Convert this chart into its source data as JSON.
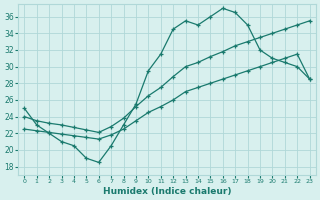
{
  "xlabel": "Humidex (Indice chaleur)",
  "ylabel": "",
  "background_color": "#d8f0ee",
  "grid_color": "#b0d8d8",
  "line_color": "#1a7a6e",
  "xlim": [
    -0.5,
    23.5
  ],
  "ylim": [
    17,
    37.5
  ],
  "yticks": [
    18,
    20,
    22,
    24,
    26,
    28,
    30,
    32,
    34,
    36
  ],
  "xticks": [
    0,
    1,
    2,
    3,
    4,
    5,
    6,
    7,
    8,
    9,
    10,
    11,
    12,
    13,
    14,
    15,
    16,
    17,
    18,
    19,
    20,
    21,
    22,
    23
  ],
  "line1_x": [
    0,
    1,
    2,
    3,
    4,
    5,
    6,
    7,
    8,
    9,
    10,
    11,
    12,
    13,
    14,
    15,
    16,
    17,
    18,
    19,
    20,
    21,
    22,
    23
  ],
  "line1_y": [
    25.0,
    23.0,
    22.0,
    21.0,
    20.5,
    19.0,
    18.5,
    20.5,
    23.0,
    25.5,
    29.5,
    31.5,
    34.5,
    35.5,
    35.0,
    36.0,
    37.0,
    36.5,
    35.0,
    32.0,
    31.0,
    30.5,
    30.0,
    28.5
  ],
  "line2_x": [
    0,
    1,
    2,
    3,
    4,
    5,
    6,
    7,
    8,
    9,
    10,
    11,
    12,
    13,
    14,
    15,
    16,
    17,
    18,
    19,
    20,
    21,
    22,
    23
  ],
  "line2_y": [
    24.0,
    23.5,
    23.2,
    23.0,
    22.7,
    22.4,
    22.1,
    22.8,
    23.8,
    25.2,
    26.5,
    27.5,
    28.8,
    30.0,
    30.5,
    31.2,
    31.8,
    32.5,
    33.0,
    33.5,
    34.0,
    34.5,
    35.0,
    35.5
  ],
  "line3_x": [
    0,
    1,
    2,
    3,
    4,
    5,
    6,
    7,
    8,
    9,
    10,
    11,
    12,
    13,
    14,
    15,
    16,
    17,
    18,
    19,
    20,
    21,
    22,
    23
  ],
  "line3_y": [
    22.5,
    22.3,
    22.1,
    21.9,
    21.7,
    21.5,
    21.3,
    21.8,
    22.5,
    23.5,
    24.5,
    25.2,
    26.0,
    27.0,
    27.5,
    28.0,
    28.5,
    29.0,
    29.5,
    30.0,
    30.5,
    31.0,
    31.5,
    28.5
  ]
}
